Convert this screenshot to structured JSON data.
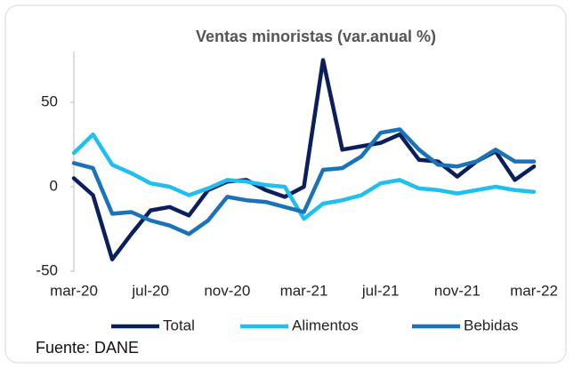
{
  "chart_data": {
    "type": "line",
    "title": "Ventas minoristas (var.anual %)",
    "source": "Fuente: DANE",
    "categories": [
      "mar-20",
      null,
      null,
      null,
      "jul-20",
      null,
      null,
      null,
      "nov-20",
      null,
      null,
      null,
      "mar-21",
      null,
      null,
      null,
      "jul-21",
      null,
      null,
      null,
      "nov-21",
      null,
      null,
      null,
      "mar-22"
    ],
    "series": [
      {
        "name": "Total",
        "color": "#0b1f5c",
        "values": [
          5,
          -5,
          -43,
          -28,
          -14,
          -12,
          -17,
          -2,
          3,
          4,
          -2,
          -6,
          0,
          75,
          22,
          24,
          26,
          31,
          16,
          15,
          6,
          15,
          21,
          4,
          12
        ]
      },
      {
        "name": "Alimentos",
        "color": "#1ec0f0",
        "values": [
          20,
          31,
          13,
          8,
          2,
          0,
          -5,
          -1,
          4,
          3,
          1,
          0,
          -19,
          -10,
          -8,
          -5,
          2,
          4,
          -1,
          -2,
          -4,
          -2,
          0,
          -2,
          -3
        ]
      },
      {
        "name": "Bebidas",
        "color": "#1a73b8",
        "values": [
          14,
          11,
          -16,
          -15,
          -20,
          -23,
          -28,
          -20,
          -6,
          -8,
          -9,
          -12,
          -15,
          10,
          11,
          18,
          32,
          34,
          22,
          13,
          12,
          15,
          22,
          15,
          15
        ]
      }
    ],
    "ylim": [
      -50,
      79
    ],
    "yticks": [
      -50,
      0,
      50
    ]
  }
}
